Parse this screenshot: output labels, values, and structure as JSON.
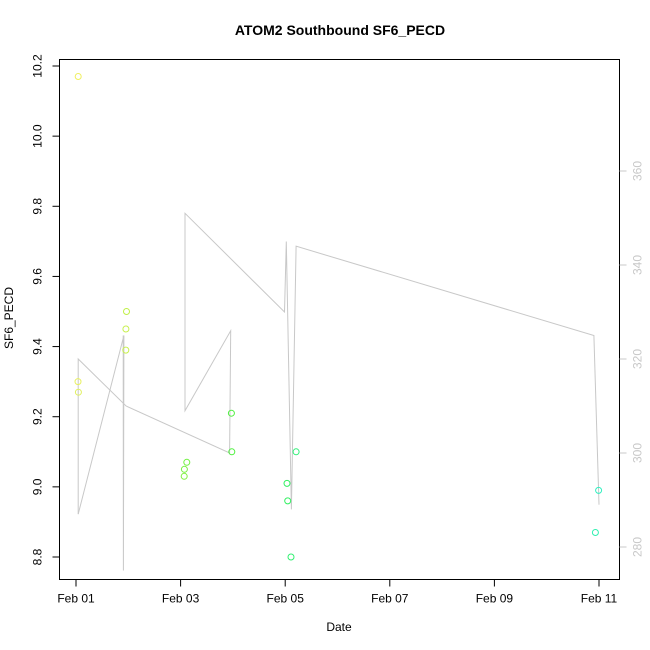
{
  "chart_data": {
    "type": "scatter",
    "title": "ATOM2 Southbound SF6_PECD",
    "xlabel": "Date",
    "ylabel": "SF6_PECD",
    "x_type": "date",
    "xlim": [
      "2024-02-01",
      "2024-02-11"
    ],
    "xticks": [
      {
        "value": "2024-02-01",
        "label": "Feb 01"
      },
      {
        "value": "2024-02-03",
        "label": "Feb 03"
      },
      {
        "value": "2024-02-05",
        "label": "Feb 05"
      },
      {
        "value": "2024-02-07",
        "label": "Feb 07"
      },
      {
        "value": "2024-02-09",
        "label": "Feb 09"
      },
      {
        "value": "2024-02-11",
        "label": "Feb 11"
      }
    ],
    "ylim": [
      8.8,
      10.2
    ],
    "yticks": [
      "8.8",
      "9.0",
      "9.2",
      "9.4",
      "9.6",
      "9.8",
      "10.0",
      "10.2"
    ],
    "y2lim": [
      270,
      370
    ],
    "y2ticks": [
      "280",
      "300",
      "320",
      "340",
      "360"
    ],
    "grid": false,
    "colors": {
      "line": "#c8c8c8",
      "right_axis": "#c8c8c8"
    },
    "series": [
      {
        "marker": "open-circle",
        "points": [
          {
            "x": "2024-02-01 01:00",
            "y": 10.17,
            "color": "#f0f060"
          },
          {
            "x": "2024-02-01 00:55",
            "y": 9.3,
            "color": "#e8f060"
          },
          {
            "x": "2024-02-01 01:05",
            "y": 9.27,
            "color": "#e0f060"
          },
          {
            "x": "2024-02-01 22:50",
            "y": 9.39,
            "color": "#c8f050"
          },
          {
            "x": "2024-02-01 22:55",
            "y": 9.45,
            "color": "#c8f050"
          },
          {
            "x": "2024-02-01 23:10",
            "y": 9.5,
            "color": "#c0f048"
          },
          {
            "x": "2024-02-03 01:40",
            "y": 9.03,
            "color": "#80f040"
          },
          {
            "x": "2024-02-03 01:45",
            "y": 9.05,
            "color": "#78f040"
          },
          {
            "x": "2024-02-03 02:50",
            "y": 9.07,
            "color": "#70f040"
          },
          {
            "x": "2024-02-03 23:20",
            "y": 9.21,
            "color": "#50f040"
          },
          {
            "x": "2024-02-03 23:30",
            "y": 9.1,
            "color": "#50f040"
          },
          {
            "x": "2024-02-05 00:50",
            "y": 9.01,
            "color": "#30f060"
          },
          {
            "x": "2024-02-05 01:10",
            "y": 8.96,
            "color": "#30f060"
          },
          {
            "x": "2024-02-05 02:40",
            "y": 8.8,
            "color": "#30f070"
          },
          {
            "x": "2024-02-05 05:00",
            "y": 9.1,
            "color": "#30f078"
          },
          {
            "x": "2024-02-10 22:20",
            "y": 8.87,
            "color": "#30f0b0"
          },
          {
            "x": "2024-02-10 23:50",
            "y": 8.99,
            "color": "#30f0c0"
          }
        ]
      },
      {
        "axis": "right",
        "style": "line",
        "color": "#c8c8c8",
        "points": [
          {
            "x": "2024-02-01 01:00",
            "y": 287
          },
          {
            "x": "2024-02-01 01:00",
            "y": 320
          },
          {
            "x": "2024-02-01 23:00",
            "y": 310
          },
          {
            "x": "2024-02-03 22:30",
            "y": 300
          },
          {
            "x": "2024-02-03 23:00",
            "y": 326
          },
          {
            "x": "2024-02-03 02:00",
            "y": 309
          },
          {
            "x": "2024-02-03 02:00",
            "y": 351
          },
          {
            "x": "2024-02-04 23:40",
            "y": 330
          },
          {
            "x": "2024-02-05 00:30",
            "y": 345
          },
          {
            "x": "2024-02-05 02:50",
            "y": 288
          },
          {
            "x": "2024-02-05 05:00",
            "y": 344
          },
          {
            "x": "2024-02-10 21:40",
            "y": 325
          },
          {
            "x": "2024-02-11 00:00",
            "y": 289
          }
        ]
      },
      {
        "axis": "right",
        "style": "line",
        "color": "#c8c8c8",
        "points": [
          {
            "x": "2024-02-01 21:40",
            "y": 325
          },
          {
            "x": "2024-02-01 21:45",
            "y": 275
          },
          {
            "x": "2024-02-01 22:00",
            "y": 325
          },
          {
            "x": "2024-02-01 01:00",
            "y": 287
          }
        ]
      }
    ]
  }
}
